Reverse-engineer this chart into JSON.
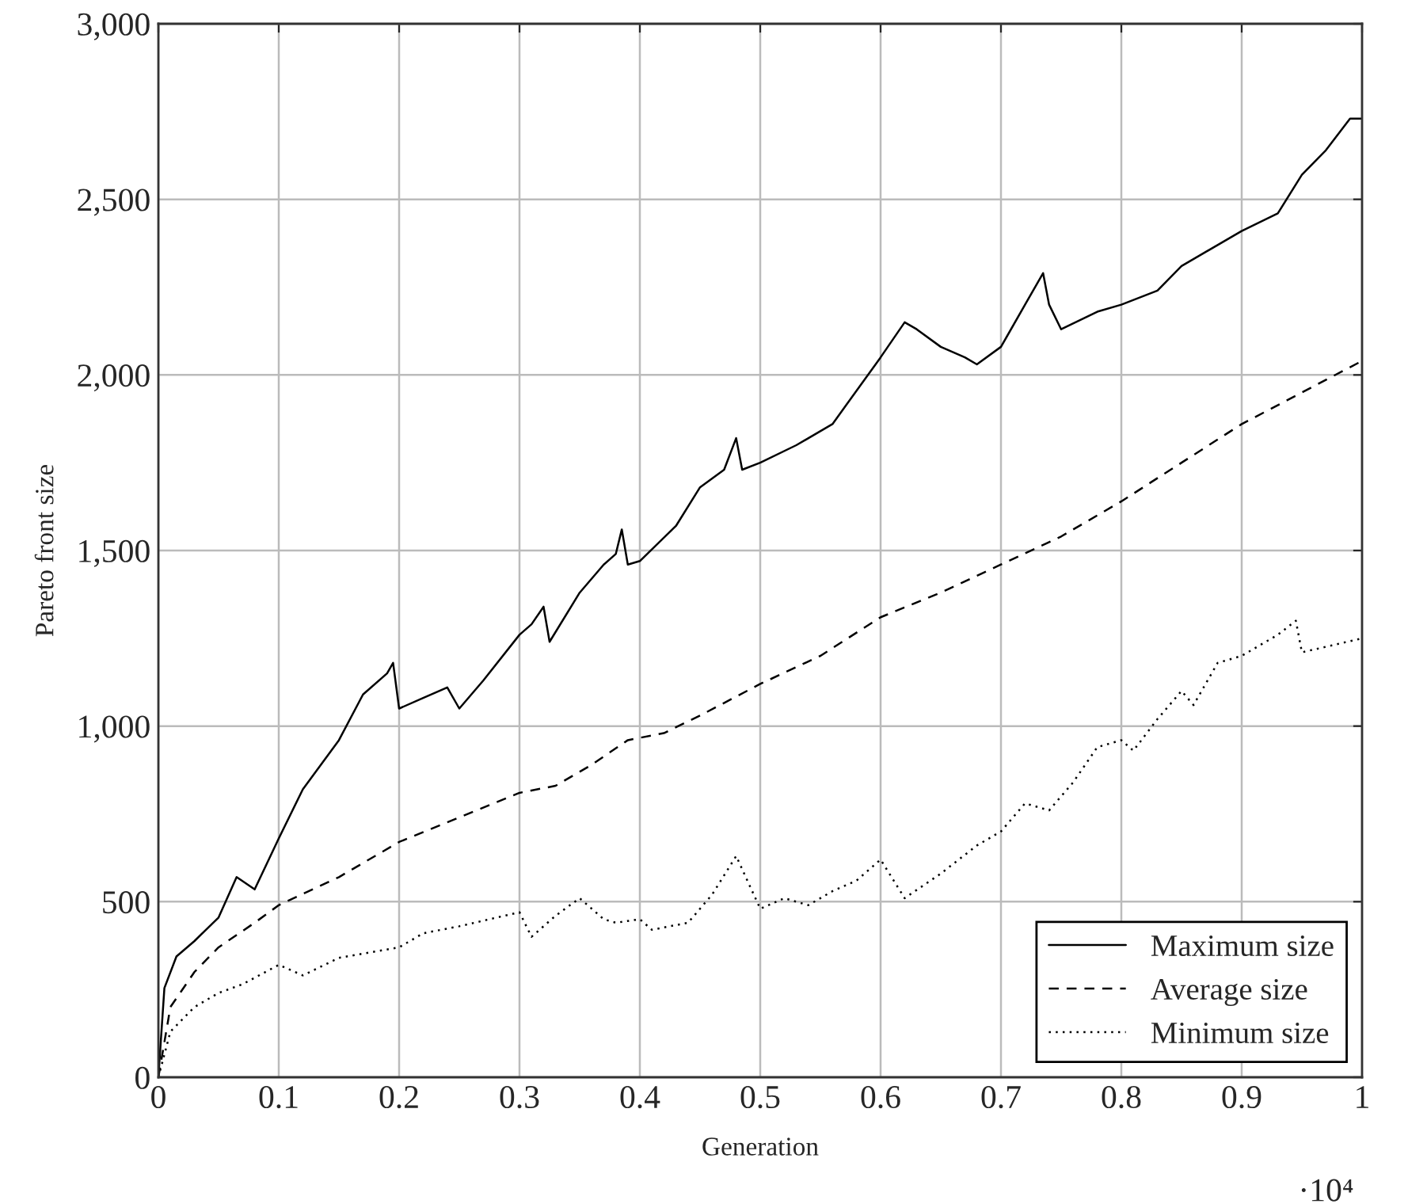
{
  "chart_data": {
    "type": "line",
    "xlabel": "Generation",
    "ylabel": "Pareto front size",
    "xlim": [
      0,
      1
    ],
    "ylim": [
      0,
      3000
    ],
    "xticks": [
      0,
      0.1,
      0.2,
      0.3,
      0.4,
      0.5,
      0.6,
      0.7,
      0.8,
      0.9,
      1
    ],
    "yticks": [
      0,
      500,
      {
        "value": 1000,
        "label": "1,000"
      },
      {
        "value": 1500,
        "label": "1,500"
      },
      {
        "value": 2000,
        "label": "2,000"
      },
      {
        "value": 2500,
        "label": "2,500"
      },
      {
        "value": 3000,
        "label": "3,000"
      }
    ],
    "grid": true,
    "legend": "bottom right",
    "marker": "none",
    "annotations": [
      "·10⁴"
    ],
    "series": [
      {
        "name": "Maximum size",
        "color": "#000000",
        "line_style": "solid",
        "x": [
          0,
          0.005,
          0.015,
          0.03,
          0.05,
          0.065,
          0.08,
          0.1,
          0.12,
          0.15,
          0.17,
          0.19,
          0.195,
          0.2,
          0.22,
          0.24,
          0.25,
          0.27,
          0.3,
          0.31,
          0.32,
          0.325,
          0.35,
          0.37,
          0.38,
          0.385,
          0.39,
          0.4,
          0.43,
          0.45,
          0.47,
          0.48,
          0.485,
          0.5,
          0.53,
          0.56,
          0.6,
          0.62,
          0.63,
          0.65,
          0.67,
          0.68,
          0.7,
          0.72,
          0.735,
          0.74,
          0.75,
          0.78,
          0.8,
          0.83,
          0.85,
          0.87,
          0.9,
          0.93,
          0.95,
          0.97,
          0.99,
          1.0
        ],
        "values": [
          0,
          254,
          344,
          388,
          455,
          570,
          535,
          680,
          820,
          960,
          1090,
          1150,
          1180,
          1050,
          1080,
          1110,
          1050,
          1130,
          1260,
          1290,
          1340,
          1240,
          1380,
          1460,
          1490,
          1560,
          1460,
          1470,
          1570,
          1680,
          1730,
          1820,
          1730,
          1750,
          1800,
          1860,
          2050,
          2150,
          2130,
          2080,
          2050,
          2030,
          2080,
          2200,
          2290,
          2200,
          2130,
          2180,
          2200,
          2240,
          2310,
          2350,
          2410,
          2460,
          2570,
          2640,
          2730,
          2730
        ]
      },
      {
        "name": "Average size",
        "color": "#000000",
        "line_style": "dashed",
        "x": [
          0,
          0.01,
          0.03,
          0.05,
          0.08,
          0.1,
          0.15,
          0.2,
          0.25,
          0.3,
          0.33,
          0.36,
          0.39,
          0.42,
          0.45,
          0.5,
          0.55,
          0.6,
          0.65,
          0.7,
          0.75,
          0.8,
          0.85,
          0.9,
          0.95,
          1.0
        ],
        "values": [
          0,
          200,
          300,
          370,
          440,
          490,
          570,
          670,
          740,
          810,
          830,
          890,
          960,
          980,
          1030,
          1120,
          1200,
          1310,
          1380,
          1460,
          1540,
          1640,
          1750,
          1860,
          1950,
          2040
        ]
      },
      {
        "name": "Minimum size",
        "color": "#000000",
        "line_style": "dotted",
        "x": [
          0,
          0.01,
          0.03,
          0.05,
          0.07,
          0.1,
          0.12,
          0.15,
          0.2,
          0.22,
          0.25,
          0.3,
          0.31,
          0.33,
          0.35,
          0.37,
          0.38,
          0.4,
          0.41,
          0.44,
          0.46,
          0.48,
          0.5,
          0.52,
          0.54,
          0.56,
          0.58,
          0.6,
          0.62,
          0.65,
          0.68,
          0.7,
          0.72,
          0.74,
          0.76,
          0.78,
          0.8,
          0.81,
          0.83,
          0.85,
          0.86,
          0.88,
          0.9,
          0.93,
          0.945,
          0.95,
          1.0
        ],
        "values": [
          0,
          130,
          200,
          240,
          265,
          320,
          290,
          340,
          370,
          410,
          430,
          470,
          400,
          460,
          510,
          450,
          440,
          450,
          420,
          440,
          520,
          630,
          480,
          510,
          490,
          530,
          560,
          620,
          510,
          580,
          660,
          700,
          780,
          760,
          840,
          940,
          960,
          930,
          1020,
          1100,
          1060,
          1180,
          1200,
          1260,
          1300,
          1210,
          1250
        ]
      }
    ]
  }
}
